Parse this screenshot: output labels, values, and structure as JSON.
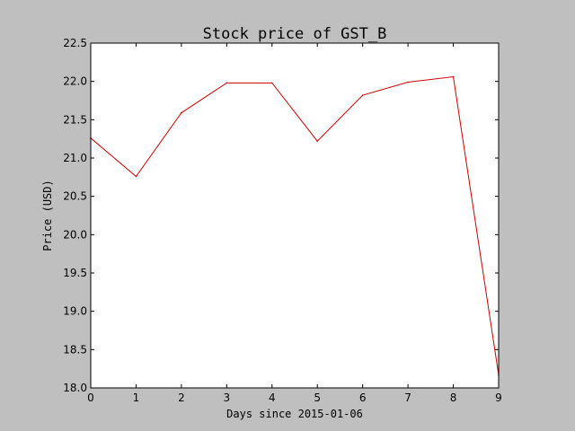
{
  "chart_data": {
    "type": "line",
    "title": "Stock price of GST_B",
    "xlabel": "Days since 2015-01-06",
    "ylabel": "Price (USD)",
    "x": [
      0,
      1,
      2,
      3,
      4,
      5,
      6,
      7,
      8,
      9
    ],
    "series": [
      {
        "values": [
          21.26,
          20.76,
          21.59,
          21.98,
          21.98,
          21.22,
          21.82,
          21.99,
          22.06,
          18.17
        ],
        "color": "#d62728"
      }
    ],
    "xlim": [
      0,
      9
    ],
    "ylim": [
      18.0,
      22.5
    ],
    "xticks": [
      "0",
      "1",
      "2",
      "3",
      "4",
      "5",
      "6",
      "7",
      "8",
      "9"
    ],
    "yticks": [
      "18.0",
      "18.5",
      "19.0",
      "19.5",
      "20.0",
      "20.5",
      "21.0",
      "21.5",
      "22.0",
      "22.5"
    ],
    "grid": false,
    "legend": "none",
    "background": "#bfbfbf",
    "plot_background": "#ffffff",
    "line_color": "#cc0000"
  }
}
